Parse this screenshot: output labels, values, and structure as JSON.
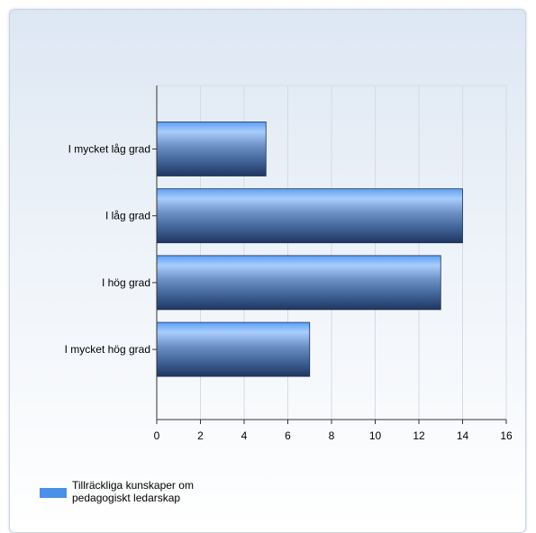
{
  "chart_data": {
    "type": "bar",
    "orientation": "horizontal",
    "categories": [
      "I mycket låg grad",
      "I låg grad",
      "I hög grad",
      "I mycket hög grad"
    ],
    "series": [
      {
        "name": "Tillräckliga kunskaper om pedagogiskt ledarskap",
        "values": [
          5,
          14,
          13,
          7
        ]
      }
    ],
    "xlim": [
      0,
      16
    ],
    "xticks": [
      0,
      2,
      4,
      6,
      8,
      10,
      12,
      14,
      16
    ],
    "grid": true,
    "legend_position": "bottom-left",
    "bar_color": "#4a8fe8"
  },
  "legend": {
    "label": "Tillräckliga kunskaper om pedagogiskt ledarskap"
  }
}
